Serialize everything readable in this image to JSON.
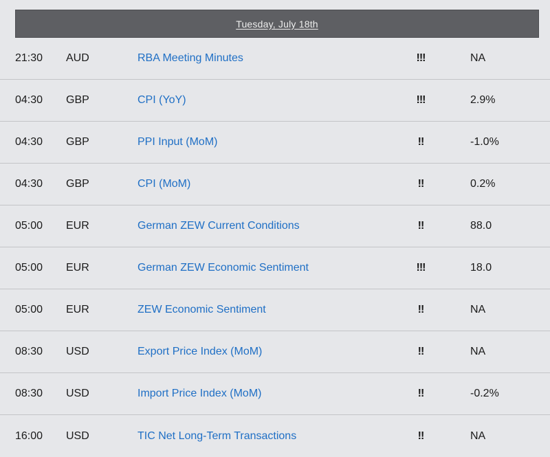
{
  "header": {
    "date": "Tuesday, July 18th"
  },
  "colors": {
    "background": "#e6e7ea",
    "header_bg": "#5e5f63",
    "link": "#1f6fc5",
    "divider": "#c3c4c7"
  },
  "events": [
    {
      "time": "21:30",
      "currency": "AUD",
      "event": "RBA Meeting Minutes",
      "impact": "!!!",
      "actual": "NA"
    },
    {
      "time": "04:30",
      "currency": "GBP",
      "event": "CPI (YoY)",
      "impact": "!!!",
      "actual": "2.9%"
    },
    {
      "time": "04:30",
      "currency": "GBP",
      "event": "PPI Input (MoM)",
      "impact": "!!",
      "actual": "-1.0%"
    },
    {
      "time": "04:30",
      "currency": "GBP",
      "event": "CPI (MoM)",
      "impact": "!!",
      "actual": "0.2%"
    },
    {
      "time": "05:00",
      "currency": "EUR",
      "event": "German ZEW Current Conditions",
      "impact": "!!",
      "actual": "88.0"
    },
    {
      "time": "05:00",
      "currency": "EUR",
      "event": "German ZEW Economic Sentiment",
      "impact": "!!!",
      "actual": "18.0"
    },
    {
      "time": "05:00",
      "currency": "EUR",
      "event": "ZEW Economic Sentiment",
      "impact": "!!",
      "actual": "NA"
    },
    {
      "time": "08:30",
      "currency": "USD",
      "event": "Export Price Index (MoM)",
      "impact": "!!",
      "actual": "NA"
    },
    {
      "time": "08:30",
      "currency": "USD",
      "event": "Import Price Index (MoM)",
      "impact": "!!",
      "actual": "-0.2%"
    },
    {
      "time": "16:00",
      "currency": "USD",
      "event": "TIC Net Long-Term Transactions",
      "impact": "!!",
      "actual": "NA"
    }
  ]
}
